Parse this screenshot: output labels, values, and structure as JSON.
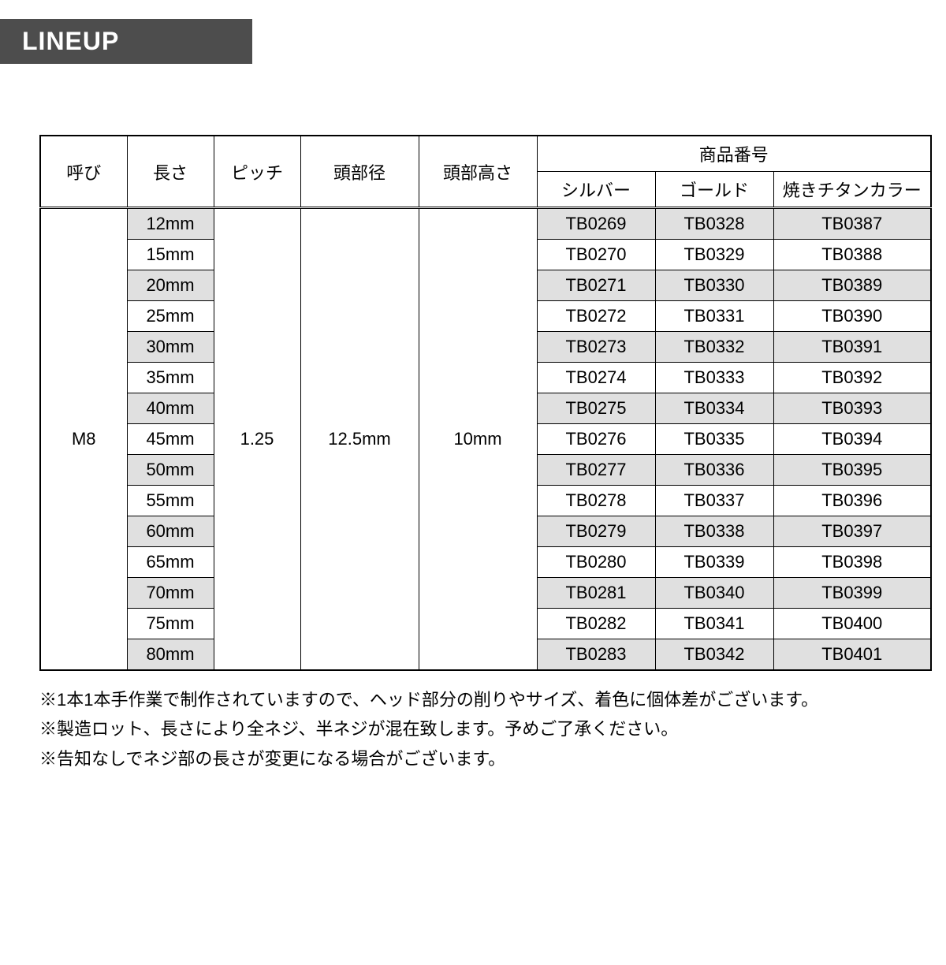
{
  "header": {
    "title": "LINEUP"
  },
  "table": {
    "columns": {
      "yobi": "呼び",
      "length": "長さ",
      "pitch": "ピッチ",
      "head_dia": "頭部径",
      "head_h": "頭部高さ",
      "part_no_group": "商品番号",
      "silver": "シルバー",
      "gold": "ゴールド",
      "burnt": "焼きチタンカラー"
    },
    "fixed": {
      "yobi": "M8",
      "pitch": "1.25",
      "head_dia": "12.5mm",
      "head_h": "10mm"
    },
    "rows": [
      {
        "len": "12mm",
        "s": "TB0269",
        "g": "TB0328",
        "b": "TB0387"
      },
      {
        "len": "15mm",
        "s": "TB0270",
        "g": "TB0329",
        "b": "TB0388"
      },
      {
        "len": "20mm",
        "s": "TB0271",
        "g": "TB0330",
        "b": "TB0389"
      },
      {
        "len": "25mm",
        "s": "TB0272",
        "g": "TB0331",
        "b": "TB0390"
      },
      {
        "len": "30mm",
        "s": "TB0273",
        "g": "TB0332",
        "b": "TB0391"
      },
      {
        "len": "35mm",
        "s": "TB0274",
        "g": "TB0333",
        "b": "TB0392"
      },
      {
        "len": "40mm",
        "s": "TB0275",
        "g": "TB0334",
        "b": "TB0393"
      },
      {
        "len": "45mm",
        "s": "TB0276",
        "g": "TB0335",
        "b": "TB0394"
      },
      {
        "len": "50mm",
        "s": "TB0277",
        "g": "TB0336",
        "b": "TB0395"
      },
      {
        "len": "55mm",
        "s": "TB0278",
        "g": "TB0337",
        "b": "TB0396"
      },
      {
        "len": "60mm",
        "s": "TB0279",
        "g": "TB0338",
        "b": "TB0397"
      },
      {
        "len": "65mm",
        "s": "TB0280",
        "g": "TB0339",
        "b": "TB0398"
      },
      {
        "len": "70mm",
        "s": "TB0281",
        "g": "TB0340",
        "b": "TB0399"
      },
      {
        "len": "75mm",
        "s": "TB0282",
        "g": "TB0341",
        "b": "TB0400"
      },
      {
        "len": "80mm",
        "s": "TB0283",
        "g": "TB0342",
        "b": "TB0401"
      }
    ],
    "colors": {
      "shade": "#e0e0e0",
      "border": "#000000",
      "bg": "#ffffff"
    }
  },
  "notes": [
    "※1本1本手作業で制作されていますので、ヘッド部分の削りやサイズ、着色に個体差がございます。",
    "※製造ロット、長さにより全ネジ、半ネジが混在致します。予めご了承ください。",
    "※告知なしでネジ部の長さが変更になる場合がございます。"
  ]
}
